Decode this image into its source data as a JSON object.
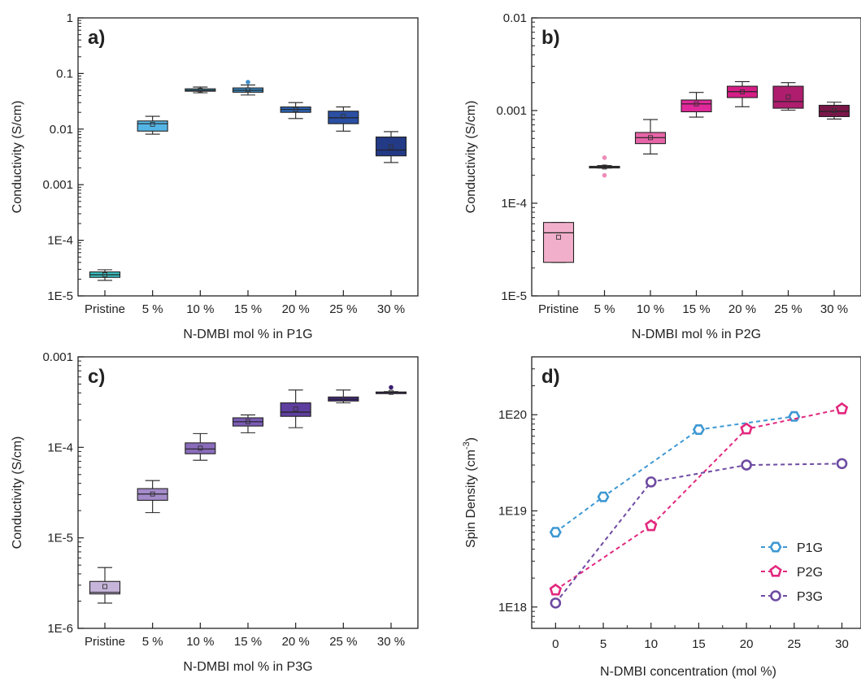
{
  "chart_data": [
    {
      "panel": "a",
      "type": "box",
      "letter": "a)",
      "xlabel": "N-DMBI mol % in P1G",
      "ylabel": "Conductivity (S/cm)",
      "yscale": "log",
      "ylim": [
        1e-05,
        1
      ],
      "ytick_values": [
        1e-05,
        0.0001,
        0.001,
        0.01,
        0.1,
        1
      ],
      "ytick_labels": [
        "1E-5",
        "1E-4",
        "0.001",
        "0.01",
        "0.1",
        "1"
      ],
      "categories": [
        "Pristine",
        "5 %",
        "10 %",
        "15 %",
        "20 %",
        "25 %",
        "30 %"
      ],
      "colors": [
        "#3BBFBF",
        "#54B6E6",
        "#4BB0D9",
        "#3F8FCA",
        "#2E64B5",
        "#2A4FA3",
        "#233A86"
      ],
      "boxes": [
        {
          "min": 1.9e-05,
          "q1": 2.15e-05,
          "median": 2.4e-05,
          "q3": 2.7e-05,
          "max": 2.95e-05,
          "mean": 2.4e-05,
          "outliers": []
        },
        {
          "min": 0.0081,
          "q1": 0.0092,
          "median": 0.0125,
          "q3": 0.014,
          "max": 0.017,
          "mean": 0.0122,
          "outliers": []
        },
        {
          "min": 0.045,
          "q1": 0.048,
          "median": 0.05,
          "q3": 0.053,
          "max": 0.057,
          "mean": 0.05,
          "outliers": []
        },
        {
          "min": 0.041,
          "q1": 0.046,
          "median": 0.05,
          "q3": 0.055,
          "max": 0.062,
          "mean": 0.051,
          "outliers": [
            0.07
          ]
        },
        {
          "min": 0.0155,
          "q1": 0.02,
          "median": 0.0225,
          "q3": 0.025,
          "max": 0.03,
          "mean": 0.0225,
          "outliers": []
        },
        {
          "min": 0.0092,
          "q1": 0.0125,
          "median": 0.016,
          "q3": 0.021,
          "max": 0.025,
          "mean": 0.017,
          "outliers": []
        },
        {
          "min": 0.0025,
          "q1": 0.0033,
          "median": 0.0042,
          "q3": 0.0072,
          "max": 0.009,
          "mean": 0.0048,
          "outliers": []
        }
      ]
    },
    {
      "panel": "b",
      "type": "box",
      "letter": "b)",
      "xlabel": "N-DMBI mol % in P2G",
      "ylabel": "Conductivity (S/cm)",
      "yscale": "log",
      "ylim": [
        1e-05,
        0.01
      ],
      "ytick_values": [
        1e-05,
        0.0001,
        0.001,
        0.01
      ],
      "ytick_labels": [
        "1E-5",
        "1E-4",
        "0.001",
        "0.01"
      ],
      "categories": [
        "Pristine",
        "5 %",
        "10 %",
        "15 %",
        "20 %",
        "25 %",
        "30 %"
      ],
      "colors": [
        "#F2AFCB",
        "#EE8CB8",
        "#E764A8",
        "#E0299A",
        "#D41E85",
        "#AE1D6E",
        "#7A1648"
      ],
      "boxes": [
        {
          "min": 2.3e-05,
          "q1": 2.3e-05,
          "median": 4.8e-05,
          "q3": 6.2e-05,
          "max": 6.2e-05,
          "mean": 4.3e-05,
          "outliers": []
        },
        {
          "min": 0.00024,
          "q1": 0.000242,
          "median": 0.000246,
          "q3": 0.00025,
          "max": 0.000255,
          "mean": 0.000246,
          "outliers": [
            0.00031,
            0.0002
          ]
        },
        {
          "min": 0.00034,
          "q1": 0.00044,
          "median": 0.00051,
          "q3": 0.00058,
          "max": 0.0008,
          "mean": 0.00051,
          "outliers": []
        },
        {
          "min": 0.00085,
          "q1": 0.00097,
          "median": 0.00118,
          "q3": 0.0013,
          "max": 0.00157,
          "mean": 0.00118,
          "outliers": []
        },
        {
          "min": 0.0011,
          "q1": 0.00138,
          "median": 0.0016,
          "q3": 0.00183,
          "max": 0.00205,
          "mean": 0.00159,
          "outliers": []
        },
        {
          "min": 0.00101,
          "q1": 0.00106,
          "median": 0.00125,
          "q3": 0.00183,
          "max": 0.002,
          "mean": 0.0014,
          "outliers": []
        },
        {
          "min": 0.00081,
          "q1": 0.00086,
          "median": 0.00098,
          "q3": 0.00114,
          "max": 0.00123,
          "mean": 0.001,
          "outliers": []
        }
      ]
    },
    {
      "panel": "c",
      "type": "box",
      "letter": "c)",
      "xlabel": "N-DMBI mol % in P3G",
      "ylabel": "Conductivity (S/cm)",
      "yscale": "log",
      "ylim": [
        1e-06,
        0.001
      ],
      "ytick_values": [
        1e-06,
        1e-05,
        0.0001,
        0.001
      ],
      "ytick_labels": [
        "1E-6",
        "1E-5",
        "1E-4",
        "0.001"
      ],
      "categories": [
        "Pristine",
        "5 %",
        "10 %",
        "15 %",
        "20 %",
        "25 %",
        "30 %"
      ],
      "colors": [
        "#C6B4DA",
        "#A48BC9",
        "#8A6CBB",
        "#7A5CB4",
        "#5E3E9E",
        "#4B2B8A",
        "#3B1F70"
      ],
      "boxes": [
        {
          "min": 1.9e-06,
          "q1": 2.4e-06,
          "median": 2.5e-06,
          "q3": 3.3e-06,
          "max": 4.7e-06,
          "mean": 2.9e-06,
          "outliers": []
        },
        {
          "min": 1.9e-05,
          "q1": 2.6e-05,
          "median": 3.05e-05,
          "q3": 3.5e-05,
          "max": 4.3e-05,
          "mean": 3.05e-05,
          "outliers": []
        },
        {
          "min": 7.2e-05,
          "q1": 8.5e-05,
          "median": 9.6e-05,
          "q3": 0.000112,
          "max": 0.000142,
          "mean": 9.8e-05,
          "outliers": []
        },
        {
          "min": 0.000145,
          "q1": 0.000172,
          "median": 0.000192,
          "q3": 0.000212,
          "max": 0.000228,
          "mean": 0.000192,
          "outliers": []
        },
        {
          "min": 0.000165,
          "q1": 0.00022,
          "median": 0.000245,
          "q3": 0.00031,
          "max": 0.00043,
          "mean": 0.000265,
          "outliers": []
        },
        {
          "min": 0.00031,
          "q1": 0.000325,
          "median": 0.00034,
          "q3": 0.00036,
          "max": 0.00043,
          "mean": 0.000342,
          "outliers": []
        },
        {
          "min": 0.0004,
          "q1": 0.000402,
          "median": 0.000405,
          "q3": 0.000409,
          "max": 0.000413,
          "mean": 0.000405,
          "outliers": [
            0.00046
          ]
        }
      ]
    },
    {
      "panel": "d",
      "type": "line",
      "letter": "d)",
      "xlabel": "N-DMBI concentration (mol %)",
      "ylabel": "Spin Density (cm",
      "ylabel_sup": "-3",
      "ylabel_tail": ")",
      "yscale": "log",
      "ylim": [
        6e+17,
        4e+20
      ],
      "ytick_values": [
        1e+18,
        1e+19,
        1e+20
      ],
      "ytick_labels": [
        "1E18",
        "1E19",
        "1E20"
      ],
      "xlim": [
        -2.5,
        32
      ],
      "xtick_values": [
        0,
        5,
        10,
        15,
        20,
        25,
        30
      ],
      "xtick_labels": [
        "0",
        "5",
        "10",
        "15",
        "20",
        "25",
        "30"
      ],
      "legend_position": "bottom-right",
      "series": [
        {
          "name": "P1G",
          "marker": "hexagon",
          "color": "#3E98D2",
          "x": [
            0,
            5,
            15,
            25
          ],
          "y": [
            6e+18,
            1.4e+19,
            7e+19,
            9.6e+19
          ]
        },
        {
          "name": "P2G",
          "marker": "pentagon",
          "color": "#E2287E",
          "x": [
            0,
            10,
            20,
            30
          ],
          "y": [
            1.5e+18,
            7e+18,
            7.1e+19,
            1.15e+20
          ]
        },
        {
          "name": "P3G",
          "marker": "circle",
          "color": "#6E4AA2",
          "x": [
            0,
            10,
            20,
            30
          ],
          "y": [
            1.1e+18,
            2e+19,
            3e+19,
            3.1e+19
          ]
        }
      ]
    }
  ]
}
